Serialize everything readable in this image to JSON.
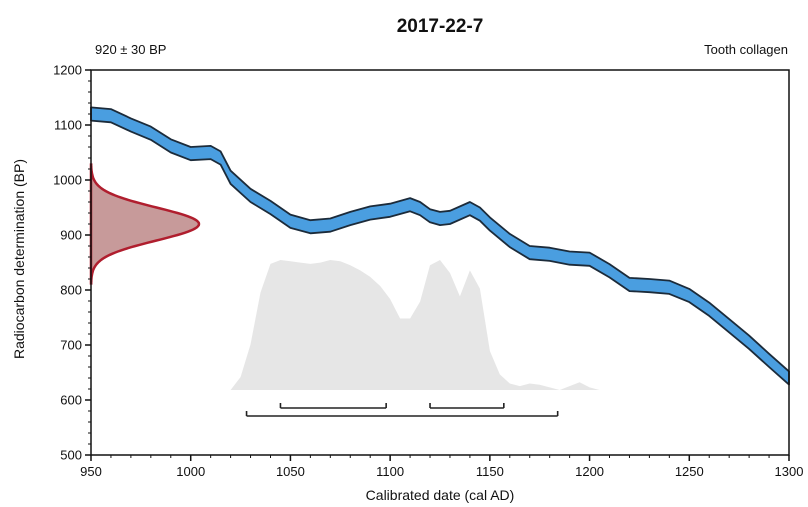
{
  "chart_data": {
    "type": "line",
    "title": "2017-22-7",
    "measurement_label": "920 ± 30 BP",
    "sample_type": "Tooth collagen",
    "xlabel": "Calibrated date (cal AD)",
    "ylabel": "Radiocarbon determination (BP)",
    "xlim": [
      950,
      1300
    ],
    "ylim": [
      500,
      1200
    ],
    "x_ticks": [
      950,
      1000,
      1050,
      1100,
      1150,
      1200,
      1250,
      1300
    ],
    "y_ticks": [
      500,
      600,
      700,
      800,
      900,
      1000,
      1100,
      1200
    ],
    "grid": false,
    "colors": {
      "calibration_curve": "#4a9ee0",
      "calibration_outline": "#1c2b3a",
      "measurement_fill": "#c79a9a",
      "measurement_outline": "#b01e2e",
      "posterior_fill": "#e6e6e6",
      "range_bars": "#222222"
    },
    "calibration_curve": {
      "name": "",
      "x": [
        950,
        960,
        970,
        980,
        990,
        1000,
        1010,
        1015,
        1020,
        1030,
        1040,
        1050,
        1060,
        1070,
        1080,
        1090,
        1100,
        1110,
        1115,
        1120,
        1125,
        1130,
        1140,
        1145,
        1150,
        1160,
        1170,
        1180,
        1190,
        1200,
        1210,
        1220,
        1230,
        1240,
        1250,
        1260,
        1270,
        1280,
        1290,
        1300
      ],
      "y": [
        1120,
        1117,
        1100,
        1085,
        1062,
        1048,
        1050,
        1040,
        1005,
        972,
        950,
        925,
        915,
        918,
        930,
        940,
        945,
        955,
        948,
        935,
        930,
        932,
        948,
        938,
        920,
        890,
        868,
        865,
        858,
        856,
        835,
        810,
        808,
        805,
        790,
        765,
        735,
        705,
        672,
        640
      ],
      "band_halfwidth": 12
    },
    "measurement_distribution": {
      "mean": 920,
      "sigma": 30
    },
    "posterior_distribution": {
      "x": [
        1020,
        1025,
        1030,
        1035,
        1040,
        1045,
        1050,
        1055,
        1060,
        1065,
        1070,
        1075,
        1080,
        1085,
        1090,
        1095,
        1100,
        1105,
        1110,
        1115,
        1120,
        1125,
        1130,
        1135,
        1140,
        1145,
        1150,
        1155,
        1160,
        1165,
        1170,
        1175,
        1180,
        1185,
        1190,
        1195,
        1200,
        1205,
        1210,
        1215,
        1220
      ],
      "density": [
        0.0,
        0.1,
        0.35,
        0.75,
        0.97,
        1.0,
        0.99,
        0.98,
        0.97,
        0.98,
        1.0,
        0.99,
        0.96,
        0.92,
        0.87,
        0.8,
        0.7,
        0.55,
        0.55,
        0.68,
        0.96,
        1.0,
        0.9,
        0.72,
        0.92,
        0.78,
        0.3,
        0.12,
        0.05,
        0.03,
        0.05,
        0.04,
        0.02,
        0.0,
        0.03,
        0.06,
        0.02,
        0.0,
        0.0,
        0.0,
        0.0
      ]
    },
    "ranges": [
      {
        "from": 1045,
        "to": 1098
      },
      {
        "from": 1120,
        "to": 1157
      },
      {
        "from": 1028,
        "to": 1184
      }
    ]
  }
}
